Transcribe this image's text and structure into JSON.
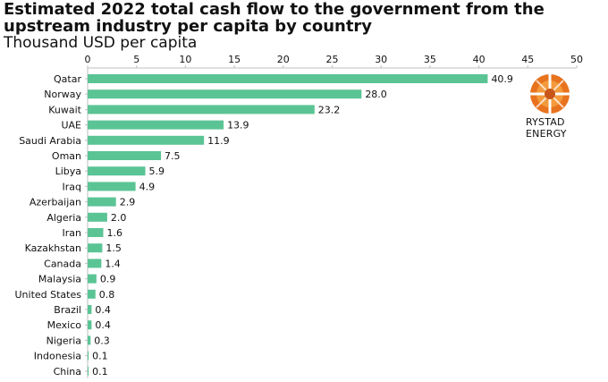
{
  "title": "Estimated 2022 total cash flow to the government from the upstream industry per capita by country",
  "subtitle": "Thousand USD per capita",
  "logo": {
    "text": "RYSTAD ENERGY",
    "icon": "rystad-energy-logo"
  },
  "colors": {
    "bar": "#5BC495",
    "axis": "#bfbfbf",
    "text": "#111111"
  },
  "chart_data": {
    "type": "bar",
    "orientation": "horizontal",
    "title": "Estimated 2022 total cash flow to the government from the upstream industry per capita by country",
    "subtitle": "Thousand USD per capita",
    "xlabel": "",
    "ylabel": "",
    "xlim": [
      0,
      50
    ],
    "ticks": [
      0,
      5,
      10,
      15,
      20,
      25,
      30,
      35,
      40,
      45,
      50
    ],
    "tick_labels": [
      "0",
      "5",
      "10",
      "15",
      "20",
      "25",
      "30",
      "35",
      "40",
      "45",
      "50"
    ],
    "axis_position": "top",
    "grid": false,
    "categories": [
      "Qatar",
      "Norway",
      "Kuwait",
      "UAE",
      "Saudi Arabia",
      "Oman",
      "Libya",
      "Iraq",
      "Azerbaijan",
      "Algeria",
      "Iran",
      "Kazakhstan",
      "Canada",
      "Malaysia",
      "United States",
      "Brazil",
      "Mexico",
      "Nigeria",
      "Indonesia",
      "China"
    ],
    "values": [
      40.9,
      28.0,
      23.2,
      13.9,
      11.9,
      7.5,
      5.9,
      4.9,
      2.9,
      2.0,
      1.6,
      1.5,
      1.4,
      0.9,
      0.8,
      0.4,
      0.4,
      0.3,
      0.1,
      0.1
    ],
    "value_labels": [
      "40.9",
      "28.0",
      "23.2",
      "13.9",
      "11.9",
      "7.5",
      "5.9",
      "4.9",
      "2.9",
      "2.0",
      "1.6",
      "1.5",
      "1.4",
      "0.9",
      "0.8",
      "0.4",
      "0.4",
      "0.3",
      "0.1",
      "0.1"
    ]
  }
}
